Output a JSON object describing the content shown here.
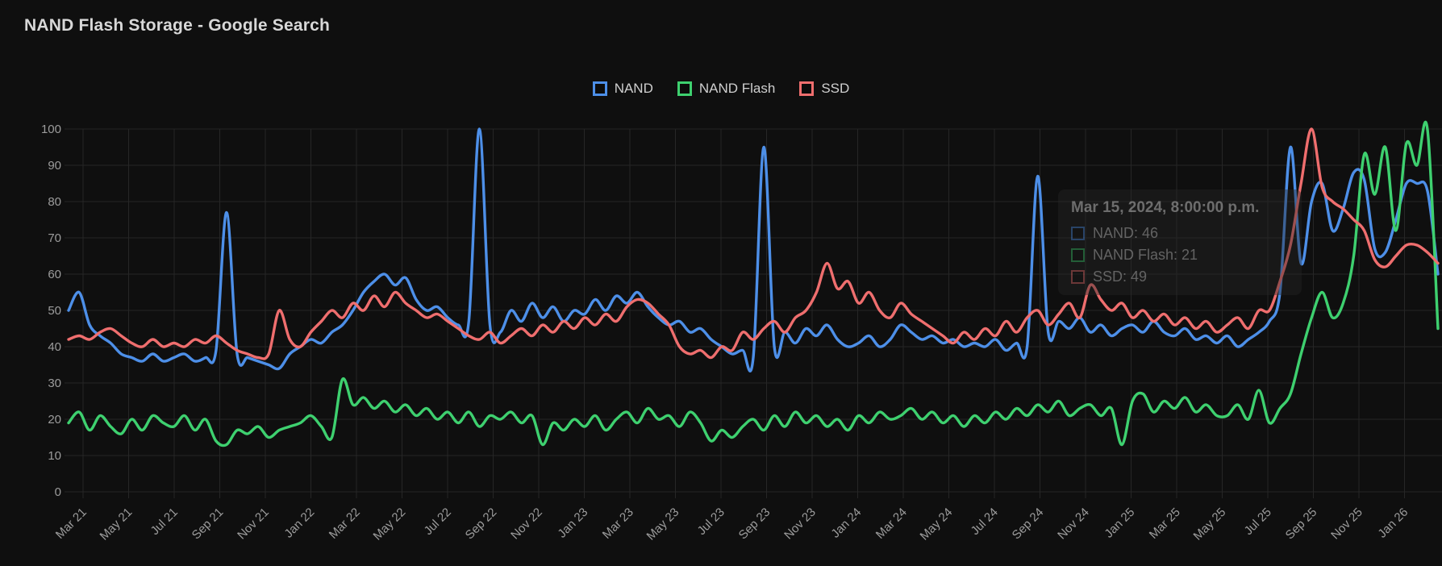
{
  "title": "NAND Flash Storage - Google Search",
  "tooltip": {
    "title": "Mar 15, 2024, 8:00:00 p.m.",
    "rows": [
      {
        "series": "NAND",
        "text": "NAND: 46"
      },
      {
        "series": "NAND Flash",
        "text": "NAND Flash: 21"
      },
      {
        "series": "SSD",
        "text": "SSD: 49"
      }
    ]
  },
  "colors": {
    "background": "#0f0f0f",
    "grid": "#262626",
    "tick_text": "#9c9c9c",
    "title_text": "#d8d8d8",
    "legend_text": "#cfcfcf"
  },
  "chart_data": {
    "type": "line",
    "title": "NAND Flash Storage - Google Search",
    "xlabel": "",
    "ylabel": "",
    "ylim": [
      0,
      100
    ],
    "y_ticks": [
      0,
      10,
      20,
      30,
      40,
      50,
      60,
      70,
      80,
      90,
      100
    ],
    "grid": true,
    "legend_position": "top-center",
    "x_tick_labels": [
      "Mar 21",
      "May 21",
      "Jul 21",
      "Sep 21",
      "Nov 21",
      "Jan 22",
      "Mar 22",
      "May 22",
      "Jul 22",
      "Sep 22",
      "Nov 22",
      "Jan 23",
      "Mar 23",
      "May 23",
      "Jul 23",
      "Sep 23",
      "Nov 23",
      "Jan 24",
      "Mar 24",
      "May 24",
      "Jul 24",
      "Sep 24",
      "Nov 24",
      "Jan 25",
      "Mar 25",
      "May 25",
      "Jul 25",
      "Sep 25",
      "Nov 25",
      "Jan 26"
    ],
    "series": [
      {
        "name": "NAND",
        "color": "#4d8fe8",
        "values": [
          50,
          55,
          46,
          43,
          41,
          38,
          37,
          36,
          38,
          36,
          37,
          38,
          36,
          37,
          39,
          77,
          38,
          37,
          36,
          35,
          34,
          38,
          40,
          42,
          41,
          44,
          46,
          50,
          55,
          58,
          60,
          57,
          59,
          53,
          50,
          51,
          48,
          46,
          47,
          100,
          46,
          44,
          50,
          47,
          52,
          48,
          51,
          47,
          50,
          49,
          53,
          50,
          54,
          52,
          55,
          51,
          48,
          46,
          47,
          44,
          45,
          42,
          40,
          38,
          39,
          37,
          95,
          40,
          44,
          41,
          45,
          43,
          46,
          42,
          40,
          41,
          43,
          40,
          42,
          46,
          44,
          42,
          43,
          41,
          42,
          40,
          41,
          40,
          42,
          39,
          41,
          40,
          87,
          44,
          47,
          45,
          48,
          44,
          46,
          43,
          45,
          46,
          44,
          47,
          44,
          43,
          45,
          42,
          43,
          41,
          43,
          40,
          42,
          44,
          47,
          55,
          95,
          63,
          80,
          85,
          72,
          78,
          88,
          86,
          67,
          66,
          75,
          85,
          85,
          83,
          60
        ]
      },
      {
        "name": "NAND Flash",
        "color": "#3ed06f",
        "values": [
          19,
          22,
          17,
          21,
          18,
          16,
          20,
          17,
          21,
          19,
          18,
          21,
          17,
          20,
          14,
          13,
          17,
          16,
          18,
          15,
          17,
          18,
          19,
          21,
          18,
          15,
          31,
          24,
          26,
          23,
          25,
          22,
          24,
          21,
          23,
          20,
          22,
          19,
          22,
          18,
          21,
          20,
          22,
          19,
          21,
          13,
          19,
          17,
          20,
          18,
          21,
          17,
          20,
          22,
          19,
          23,
          20,
          21,
          18,
          22,
          19,
          14,
          17,
          15,
          18,
          20,
          17,
          21,
          18,
          22,
          19,
          21,
          18,
          20,
          17,
          21,
          19,
          22,
          20,
          21,
          23,
          20,
          22,
          19,
          21,
          18,
          21,
          19,
          22,
          20,
          23,
          21,
          24,
          22,
          25,
          21,
          23,
          24,
          21,
          23,
          13,
          25,
          27,
          22,
          25,
          23,
          26,
          22,
          24,
          21,
          21,
          24,
          20,
          28,
          19,
          23,
          27,
          38,
          48,
          55,
          48,
          52,
          65,
          93,
          82,
          95,
          72,
          96,
          90,
          100,
          45
        ]
      },
      {
        "name": "SSD",
        "color": "#ef6e6e",
        "values": [
          42,
          43,
          42,
          44,
          45,
          43,
          41,
          40,
          42,
          40,
          41,
          40,
          42,
          41,
          43,
          41,
          39,
          38,
          37,
          38,
          50,
          42,
          40,
          44,
          47,
          50,
          48,
          52,
          50,
          54,
          51,
          55,
          52,
          50,
          48,
          49,
          47,
          45,
          43,
          42,
          44,
          41,
          43,
          45,
          43,
          46,
          44,
          47,
          45,
          48,
          46,
          49,
          47,
          51,
          53,
          52,
          49,
          46,
          40,
          38,
          39,
          37,
          40,
          39,
          44,
          42,
          45,
          47,
          44,
          48,
          50,
          55,
          63,
          56,
          58,
          52,
          55,
          50,
          48,
          52,
          49,
          47,
          45,
          43,
          41,
          44,
          42,
          45,
          43,
          47,
          44,
          48,
          50,
          46,
          49,
          52,
          48,
          57,
          53,
          50,
          52,
          48,
          50,
          47,
          49,
          46,
          48,
          45,
          47,
          44,
          46,
          48,
          45,
          50,
          50,
          58,
          68,
          85,
          100,
          84,
          80,
          78,
          75,
          72,
          64,
          62,
          65,
          68,
          68,
          66,
          63
        ]
      }
    ]
  }
}
